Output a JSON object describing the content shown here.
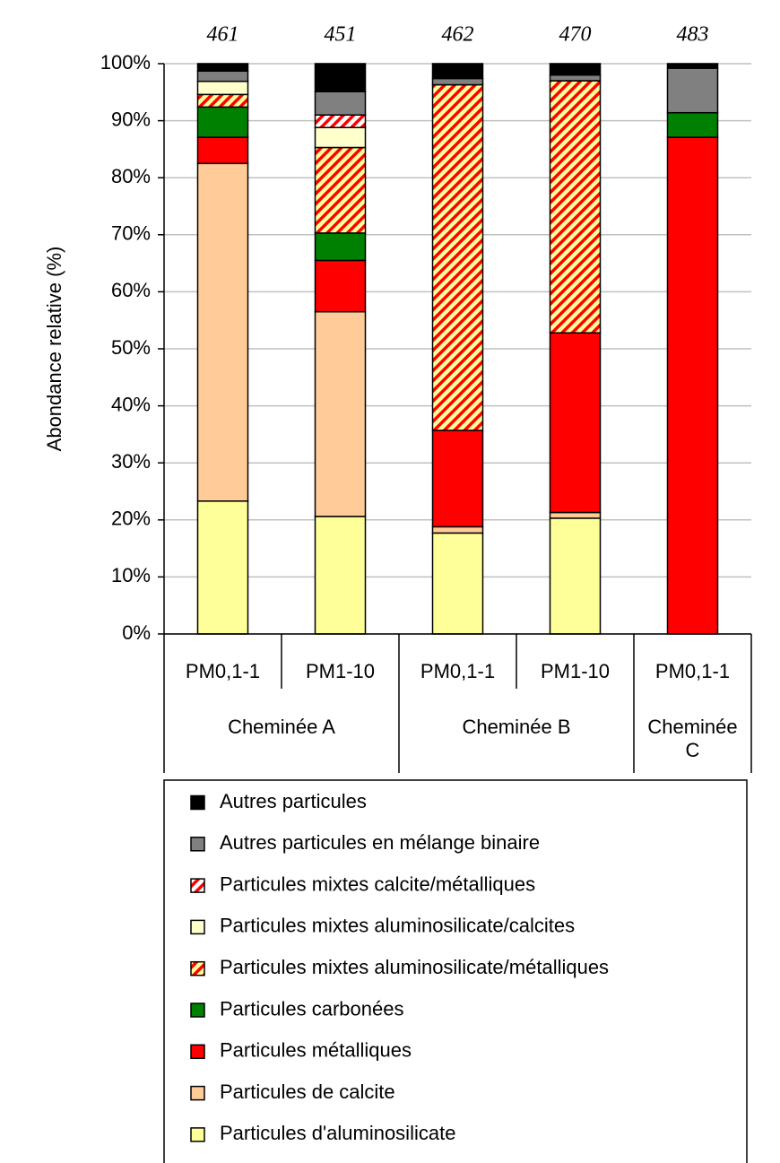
{
  "chart_data": {
    "type": "stacked_bar",
    "y_label": "Abondance relative (%)",
    "ylim": [
      0,
      100
    ],
    "yticks": [
      {
        "value": 0,
        "label": "0%"
      },
      {
        "value": 10,
        "label": "10%"
      },
      {
        "value": 20,
        "label": "20%"
      },
      {
        "value": 30,
        "label": "30%"
      },
      {
        "value": 40,
        "label": "40%"
      },
      {
        "value": 50,
        "label": "50%"
      },
      {
        "value": 60,
        "label": "60%"
      },
      {
        "value": 70,
        "label": "70%"
      },
      {
        "value": 80,
        "label": "80%"
      },
      {
        "value": 90,
        "label": "90%"
      },
      {
        "value": 100,
        "label": "100%"
      }
    ],
    "grid": true,
    "categories": [
      "PM0,1-1",
      "PM1-10",
      "PM0,1-1",
      "PM1-10",
      "PM0,1-1"
    ],
    "category_groups": [
      "Cheminée A",
      null,
      "Cheminée B",
      null,
      "Cheminée C"
    ],
    "annotations": [
      461,
      451,
      462,
      470,
      483
    ],
    "series": [
      {
        "name": "Particules d'aluminosilicate",
        "color": "#ffff99",
        "values": [
          23.3,
          20.6,
          17.7,
          20.3,
          0
        ]
      },
      {
        "name": "Particules de calcite",
        "color": "#ffcc99",
        "values": [
          59.2,
          35.9,
          1.1,
          1.0,
          0
        ]
      },
      {
        "name": "Particules métalliques",
        "color": "#ff0000",
        "values": [
          4.6,
          9.0,
          16.9,
          31.5,
          87.1
        ]
      },
      {
        "name": "Particules carbonées",
        "color": "#008000",
        "values": [
          5.3,
          4.8,
          0,
          0,
          4.3
        ]
      },
      {
        "name": "Particules mixtes aluminosilicate/métalliques",
        "color": "#ffff99",
        "hatch": "#ff0000",
        "values": [
          2.2,
          15.0,
          60.6,
          44.2,
          0
        ]
      },
      {
        "name": "Particules mixtes aluminosilicate/calcites",
        "color": "#ffffcc",
        "values": [
          2.3,
          3.5,
          0,
          0,
          0
        ]
      },
      {
        "name": "Particules mixtes calcite/métalliques",
        "color": "#ffffff",
        "hatch": "#ff0000",
        "values": [
          0,
          2.2,
          0,
          0,
          0
        ]
      },
      {
        "name": "Autres particules en mélange binaire",
        "color": "#808080",
        "values": [
          1.8,
          4.1,
          1.1,
          1.0,
          7.8
        ]
      },
      {
        "name": "Autres particules",
        "color": "#000000",
        "values": [
          1.3,
          4.9,
          2.6,
          2.0,
          0.8
        ]
      }
    ]
  }
}
